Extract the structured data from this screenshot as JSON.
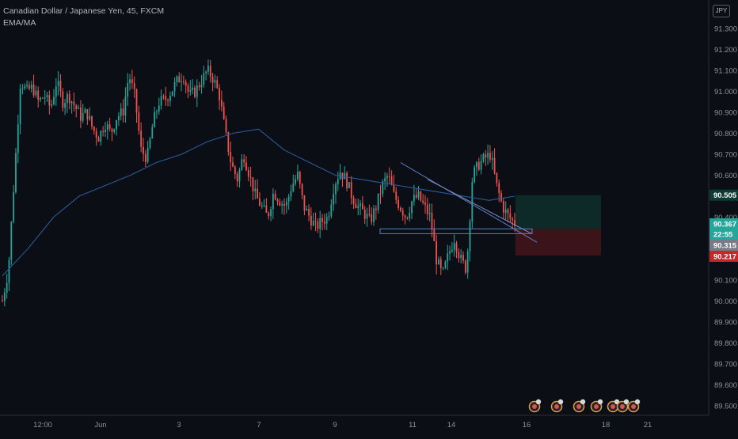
{
  "legend": {
    "symbol": "Canadian Dollar / Japanese Yen, 45, FXCM",
    "indicator": "EMA/MA"
  },
  "currency_badge": "JPY",
  "price_tags": {
    "entry": "90.505",
    "last": "90.367",
    "countdown": "22:55",
    "mid": "90.315",
    "stop": "90.217"
  },
  "colors": {
    "background": "#0c0e15",
    "up": "#26a69a",
    "down": "#ef5350",
    "ma": "#2a5a9e",
    "trendline": "#5b7fc4",
    "axis_text": "#8e919a",
    "target_zone": "#0e2a28",
    "stop_zone": "#3a1418"
  },
  "event_icons": [
    "flag-event-icon",
    "flag-event-icon",
    "flag-event-icon",
    "flag-event-icon",
    "flag-event-icon",
    "flag-event-icon",
    "flag-event-icon"
  ],
  "chart_data": {
    "type": "candlestick",
    "title": "Canadian Dollar / Japanese Yen, 45, FXCM",
    "timeframe": "45",
    "ylim": [
      89.45,
      91.4
    ],
    "y_ticks": [
      "91.300",
      "91.200",
      "91.100",
      "91.000",
      "90.900",
      "90.800",
      "90.700",
      "90.600",
      "90.500",
      "90.400",
      "90.300",
      "90.200",
      "90.100",
      "90.000",
      "89.900",
      "89.800",
      "89.700",
      "89.600",
      "89.500"
    ],
    "x_ticks": [
      "12:00",
      "Jun",
      "3",
      "7",
      "9",
      "11",
      "14",
      "16",
      "18",
      "21"
    ],
    "grid": false,
    "series": [
      {
        "name": "Price (approx. trace)",
        "values": [
          90.0,
          90.15,
          90.6,
          91.05,
          91.0,
          91.02,
          90.95,
          90.98,
          90.92,
          91.05,
          90.95,
          90.98,
          90.93,
          90.88,
          90.9,
          90.82,
          90.78,
          90.85,
          90.8,
          90.88,
          90.9,
          91.08,
          90.97,
          90.72,
          90.68,
          90.85,
          90.95,
          90.96,
          91.0,
          91.05,
          91.08,
          90.98,
          91.0,
          91.05,
          91.1,
          91.06,
          90.98,
          90.8,
          90.65,
          90.58,
          90.7,
          90.6,
          90.5,
          90.45,
          90.4,
          90.52,
          90.48,
          90.45,
          90.55,
          90.6,
          90.45,
          90.4,
          90.35,
          90.38,
          90.4,
          90.55,
          90.62,
          90.58,
          90.5,
          90.45,
          90.42,
          90.38,
          90.45,
          90.55,
          90.6,
          90.5,
          90.45,
          90.4,
          90.48,
          90.5,
          90.45,
          90.4,
          90.2,
          90.12,
          90.22,
          90.3,
          90.2,
          90.15,
          90.6,
          90.65,
          90.68,
          90.7,
          90.55,
          90.45,
          90.4,
          90.37
        ]
      },
      {
        "name": "Moving average (approx. trace)",
        "values": [
          90.12,
          90.25,
          90.4,
          90.5,
          90.55,
          90.6,
          90.66,
          90.7,
          90.76,
          90.8,
          90.82,
          90.72,
          90.66,
          90.6,
          90.58,
          90.56,
          90.54,
          90.52,
          90.5,
          90.48,
          90.5
        ]
      }
    ],
    "positions": {
      "entry": 90.505,
      "target_top": 90.505,
      "stop": 90.217,
      "last": 90.367,
      "support_line": 90.34
    }
  }
}
